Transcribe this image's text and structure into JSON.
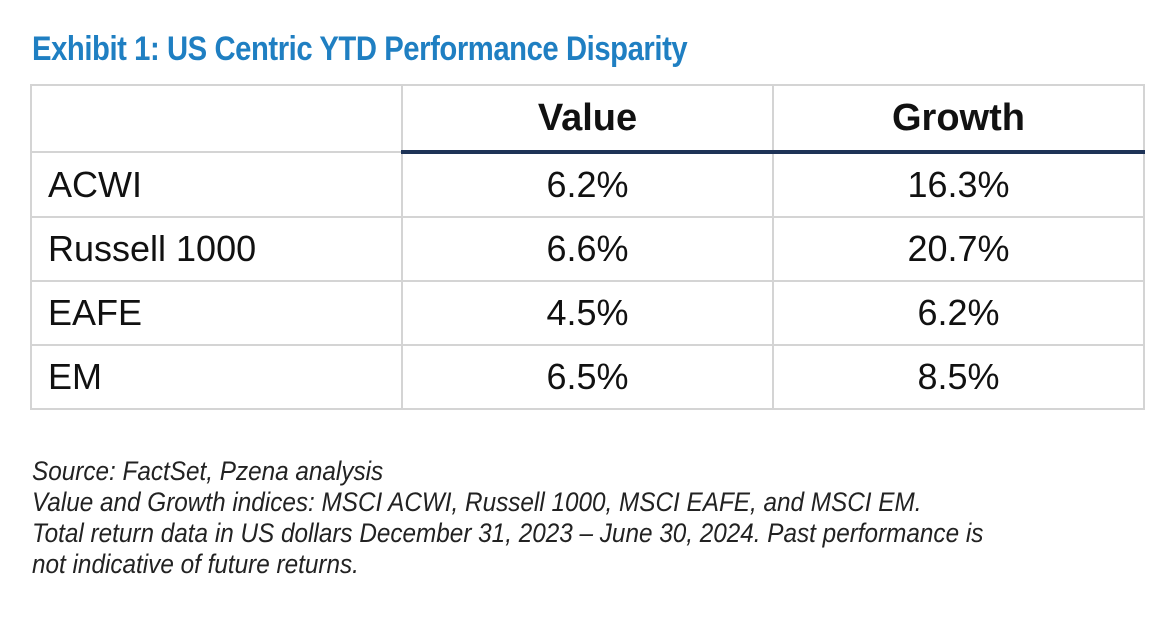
{
  "title": "Exhibit 1: US Centric YTD Performance Disparity",
  "chart_data": {
    "type": "table",
    "title": "Exhibit 1: US Centric YTD Performance Disparity",
    "columns": [
      "",
      "Value",
      "Growth"
    ],
    "rows": [
      {
        "label": "ACWI",
        "value": "6.2%",
        "growth": "16.3%"
      },
      {
        "label": "Russell 1000",
        "value": "6.6%",
        "growth": "20.7%"
      },
      {
        "label": "EAFE",
        "value": "4.5%",
        "growth": "6.2%"
      },
      {
        "label": "EM",
        "value": "6.5%",
        "growth": "8.5%"
      }
    ]
  },
  "notes": [
    "Source: FactSet, Pzena analysis",
    "Value and Growth indices: MSCI ACWI, Russell 1000, MSCI EAFE, and MSCI EM.",
    "Total return data in US dollars December 31, 2023 – June 30, 2024. Past performance is",
    "not indicative of future returns."
  ],
  "colors": {
    "title": "#1f7fc2",
    "header_rule": "#1e3357",
    "grid": "#d4d4d4"
  }
}
